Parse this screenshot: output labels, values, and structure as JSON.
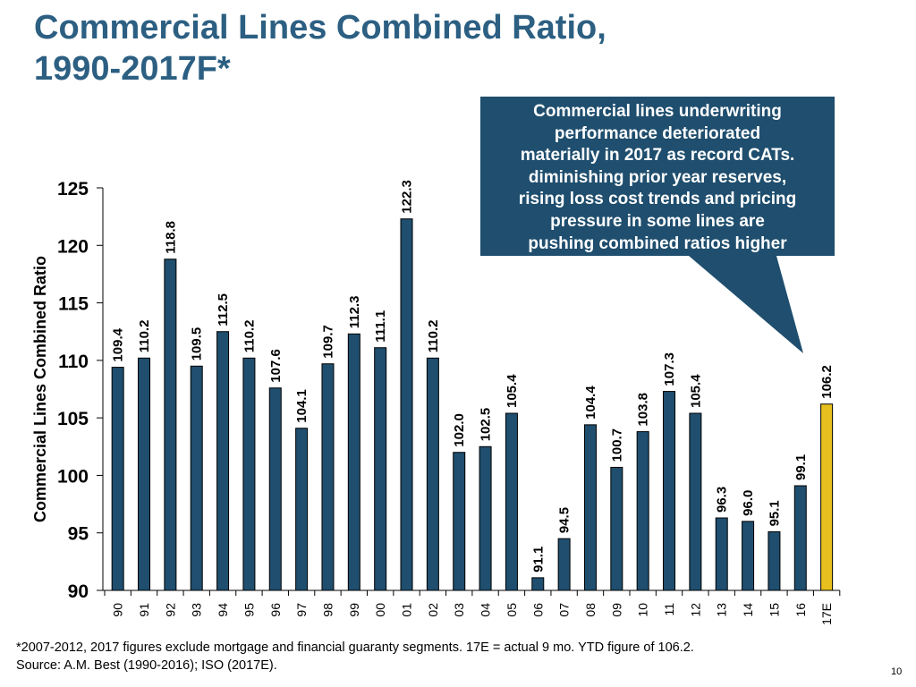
{
  "title": {
    "line1": "Commercial Lines Combined Ratio,",
    "line2": "1990-2017F*"
  },
  "callout": {
    "lines": [
      "Commercial lines underwriting",
      "performance deteriorated",
      "materially in 2017 as record CATs.",
      "diminishing prior year reserves,",
      "rising loss cost trends and pricing",
      "pressure in some lines are",
      "pushing combined ratios higher"
    ]
  },
  "footnote": {
    "line1": "*2007-2012, 2017 figures exclude mortgage and financial guaranty segments. 17E = actual 9 mo. YTD figure of 106.2.",
    "line2": "Source: A.M. Best (1990-2016); ISO (2017E)."
  },
  "page_number": "10",
  "colors": {
    "title": "#2c5f82",
    "bar": "#1f4e6e",
    "highlight": "#e8c01e",
    "callout_bg": "#1f4e6e"
  },
  "chart_data": {
    "type": "bar",
    "title": "Commercial Lines Combined Ratio, 1990-2017F*",
    "xlabel": "",
    "ylabel": "Commercial Lines Combined Ratio",
    "ylim": [
      90,
      125
    ],
    "yticks": [
      90,
      95,
      100,
      105,
      110,
      115,
      120,
      125
    ],
    "grid": false,
    "categories": [
      "90",
      "91",
      "92",
      "93",
      "94",
      "95",
      "96",
      "97",
      "98",
      "99",
      "00",
      "01",
      "02",
      "03",
      "04",
      "05",
      "06",
      "07",
      "08",
      "09",
      "10",
      "11",
      "12",
      "13",
      "14",
      "15",
      "16",
      "17E"
    ],
    "values": [
      109.4,
      110.2,
      118.8,
      109.5,
      112.5,
      110.2,
      107.6,
      104.1,
      109.7,
      112.3,
      111.1,
      122.3,
      110.2,
      102.0,
      102.5,
      105.4,
      91.1,
      94.5,
      104.4,
      100.7,
      103.8,
      107.3,
      105.4,
      96.3,
      96.0,
      95.1,
      99.1,
      106.2
    ],
    "value_labels": [
      "109.4",
      "110.2",
      "118.8",
      "109.5",
      "112.5",
      "110.2",
      "107.6",
      "104.1",
      "109.7",
      "112.3",
      "111.1",
      "122.3",
      "110.2",
      "102.0",
      "102.5",
      "105.4",
      "91.1",
      "94.5",
      "104.4",
      "100.7",
      "103.8",
      "107.3",
      "105.4",
      "96.3",
      "96.0",
      "95.1",
      "99.1",
      "106.2"
    ],
    "highlight_categories": [
      "17E"
    ]
  }
}
